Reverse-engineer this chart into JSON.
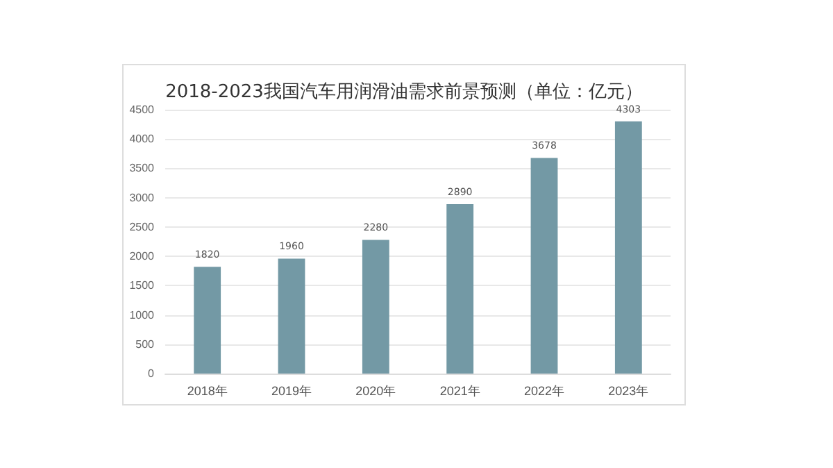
{
  "chart_data": {
    "type": "bar",
    "title": "2018-2023我国汽车用润滑油需求前景预测（单位：亿元）",
    "categories": [
      "2018年",
      "2019年",
      "2020年",
      "2021年",
      "2022年",
      "2023年"
    ],
    "values": [
      1820,
      1960,
      2280,
      2890,
      3678,
      4303
    ],
    "color": "#7399a5",
    "ylim": [
      0,
      4500
    ],
    "yticks": [
      0,
      500,
      1000,
      1500,
      2000,
      2500,
      3000,
      3500,
      4000,
      4500
    ],
    "grid": "y",
    "data_labels": true
  }
}
